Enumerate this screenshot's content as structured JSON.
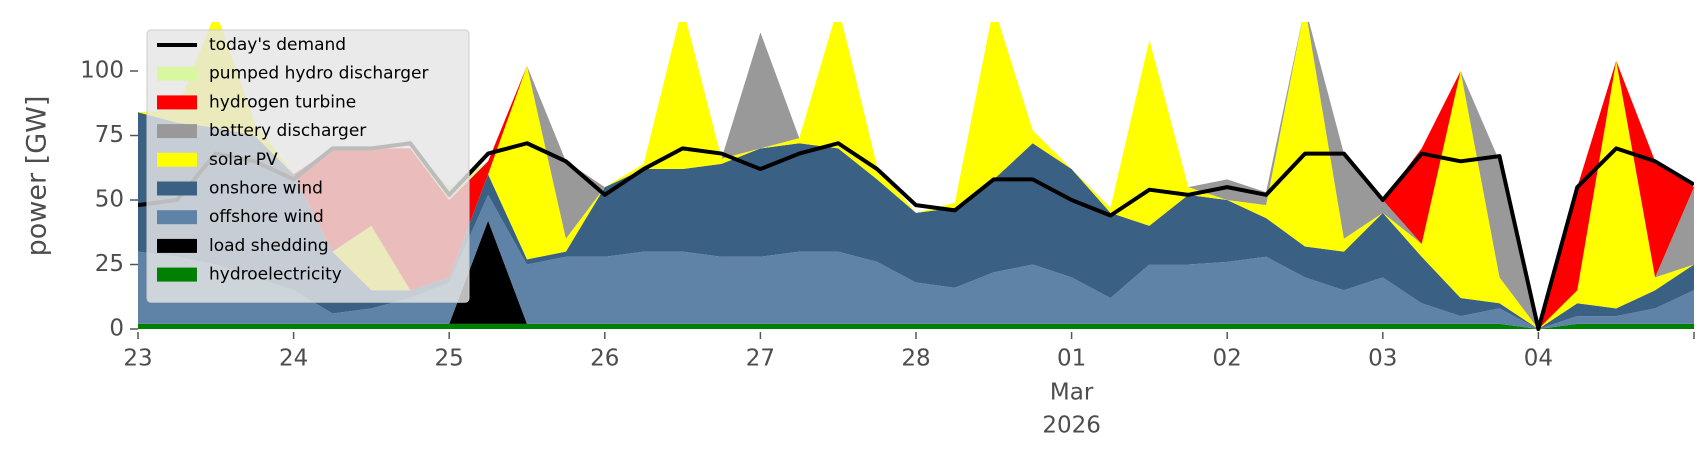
{
  "chart_data": {
    "type": "area",
    "y_label": "power [GW]",
    "x_month_label": "Mar",
    "x_year_label": "2026",
    "legend": "upper left",
    "x": [
      "2026-02-23T00:00",
      "2026-02-23T06:00",
      "2026-02-23T12:00",
      "2026-02-23T18:00",
      "2026-02-24T00:00",
      "2026-02-24T06:00",
      "2026-02-24T12:00",
      "2026-02-24T18:00",
      "2026-02-25T00:00",
      "2026-02-25T06:00",
      "2026-02-25T12:00",
      "2026-02-25T18:00",
      "2026-02-26T00:00",
      "2026-02-26T06:00",
      "2026-02-26T12:00",
      "2026-02-26T18:00",
      "2026-02-27T00:00",
      "2026-02-27T06:00",
      "2026-02-27T12:00",
      "2026-02-27T18:00",
      "2026-02-28T00:00",
      "2026-02-28T06:00",
      "2026-02-28T12:00",
      "2026-02-28T18:00",
      "2026-03-01T00:00",
      "2026-03-01T06:00",
      "2026-03-01T12:00",
      "2026-03-01T18:00",
      "2026-03-02T00:00",
      "2026-03-02T06:00",
      "2026-03-02T12:00",
      "2026-03-02T18:00",
      "2026-03-03T00:00",
      "2026-03-03T06:00",
      "2026-03-03T12:00",
      "2026-03-03T18:00",
      "2026-03-04T00:00",
      "2026-03-04T06:00",
      "2026-03-04T12:00",
      "2026-03-04T18:00",
      "2026-03-05T00:00"
    ],
    "xlim": [
      "2026-02-23T00:00",
      "2026-03-05T00:00"
    ],
    "xticks": [
      {
        "value": "2026-02-23T00:00",
        "label": "23"
      },
      {
        "value": "2026-02-24T00:00",
        "label": "24"
      },
      {
        "value": "2026-02-25T00:00",
        "label": "25"
      },
      {
        "value": "2026-02-26T00:00",
        "label": "26"
      },
      {
        "value": "2026-02-27T00:00",
        "label": "27"
      },
      {
        "value": "2026-02-28T00:00",
        "label": "28"
      },
      {
        "value": "2026-03-01T00:00",
        "label": "01"
      },
      {
        "value": "2026-03-02T00:00",
        "label": "02"
      },
      {
        "value": "2026-03-03T00:00",
        "label": "03"
      },
      {
        "value": "2026-03-04T00:00",
        "label": "04"
      }
    ],
    "ylim": [
      0,
      119
    ],
    "yticks": [
      0,
      25,
      50,
      75,
      100
    ],
    "series": [
      {
        "name": "hydroelectricity",
        "style": "area",
        "color": "#008000",
        "values": [
          2,
          2,
          2,
          2,
          2,
          2,
          2,
          2,
          2,
          2,
          2,
          2,
          2,
          2,
          2,
          2,
          2,
          2,
          2,
          2,
          2,
          2,
          2,
          2,
          2,
          2,
          2,
          2,
          2,
          2,
          2,
          2,
          2,
          2,
          2,
          2,
          0,
          2,
          2,
          2,
          2
        ]
      },
      {
        "name": "load shedding",
        "style": "area",
        "color": "#000000",
        "values": [
          0,
          0,
          0,
          0,
          0,
          0,
          0,
          0,
          0,
          40,
          0,
          0,
          0,
          0,
          0,
          0,
          0,
          0,
          0,
          0,
          0,
          0,
          0,
          0,
          0,
          0,
          0,
          0,
          0,
          0,
          0,
          0,
          0,
          0,
          0,
          0,
          0,
          0,
          0,
          0,
          0
        ]
      },
      {
        "name": "offshore wind",
        "style": "area",
        "color": "#5f83a7",
        "values": [
          28,
          26,
          23,
          18,
          13,
          4,
          6,
          10,
          16,
          10,
          23,
          26,
          26,
          28,
          28,
          26,
          26,
          28,
          28,
          24,
          16,
          14,
          20,
          23,
          18,
          10,
          23,
          23,
          24,
          26,
          18,
          13,
          18,
          8,
          3,
          6,
          0,
          3,
          3,
          6,
          13
        ]
      },
      {
        "name": "onshore wind",
        "style": "area",
        "color": "#3a6183",
        "values": [
          54,
          52,
          53,
          55,
          45,
          24,
          7,
          3,
          2,
          8,
          2,
          2,
          27,
          32,
          32,
          36,
          42,
          42,
          40,
          32,
          27,
          31,
          36,
          47,
          42,
          33,
          15,
          27,
          24,
          15,
          12,
          15,
          25,
          18,
          7,
          2,
          0,
          5,
          3,
          7,
          10
        ]
      },
      {
        "name": "solar PV",
        "style": "area",
        "color": "#ffff00",
        "values": [
          0,
          5,
          45,
          5,
          0,
          0,
          25,
          0,
          0,
          0,
          75,
          5,
          0,
          2,
          63,
          2,
          0,
          2,
          55,
          5,
          0,
          2,
          67,
          5,
          0,
          2,
          72,
          3,
          0,
          5,
          93,
          5,
          0,
          5,
          88,
          10,
          0,
          5,
          96,
          5,
          0
        ]
      },
      {
        "name": "battery discharger",
        "style": "area",
        "color": "#999999",
        "values": [
          0,
          0,
          0,
          0,
          0,
          0,
          0,
          0,
          0,
          0,
          0,
          30,
          0,
          0,
          0,
          0,
          45,
          0,
          0,
          0,
          0,
          0,
          0,
          0,
          0,
          0,
          0,
          0,
          8,
          5,
          0,
          33,
          5,
          0,
          0,
          45,
          0,
          0,
          0,
          0,
          30
        ]
      },
      {
        "name": "hydrogen turbine",
        "style": "area",
        "color": "#ff0000",
        "values": [
          0,
          0,
          0,
          0,
          0,
          40,
          30,
          55,
          30,
          5,
          0,
          0,
          0,
          0,
          0,
          0,
          0,
          0,
          0,
          0,
          0,
          0,
          0,
          0,
          0,
          0,
          0,
          0,
          0,
          0,
          0,
          0,
          0,
          37,
          0,
          0,
          0,
          40,
          0,
          45,
          0
        ]
      },
      {
        "name": "pumped hydro discharger",
        "style": "area",
        "color": "#d9f7a0",
        "values": [
          0,
          0,
          0,
          0,
          0,
          0,
          0,
          0,
          5,
          0,
          0,
          0,
          0,
          0,
          0,
          0,
          0,
          0,
          0,
          0,
          0,
          0,
          0,
          0,
          0,
          0,
          0,
          0,
          0,
          0,
          0,
          0,
          0,
          0,
          0,
          0,
          0,
          0,
          0,
          0,
          0
        ]
      },
      {
        "name": "today's demand",
        "style": "line",
        "color": "#000000",
        "values": [
          48,
          50,
          68,
          65,
          58,
          70,
          70,
          72,
          52,
          68,
          72,
          65,
          52,
          62,
          70,
          68,
          62,
          68,
          72,
          62,
          48,
          46,
          58,
          58,
          50,
          44,
          54,
          52,
          55,
          52,
          68,
          68,
          50,
          68,
          65,
          67,
          0,
          55,
          70,
          65,
          56
        ]
      }
    ]
  }
}
